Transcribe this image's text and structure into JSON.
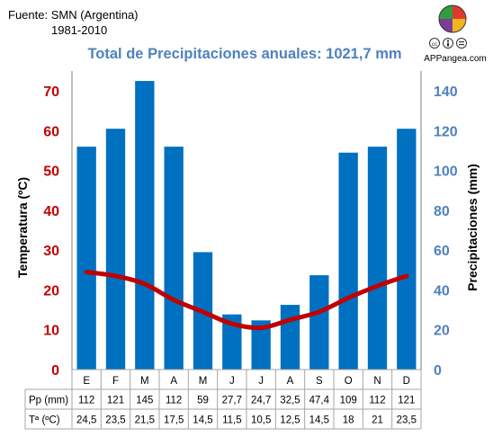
{
  "source": {
    "line1": "Fuente: SMN (Argentina)",
    "line2": "1981-2010"
  },
  "logo": {
    "text": "APPangea.com",
    "license_icons": [
      "cc-icon",
      "by-icon",
      "equal-icon"
    ]
  },
  "colors": {
    "bar": "#0070c0",
    "line": "#c00000",
    "right_axis": "#4f81bd",
    "left_axis": "#c00000"
  },
  "chart_data": {
    "type": "bar",
    "title": "Total de Precipitaciones anuales: 1021,7 mm",
    "categories": [
      "E",
      "F",
      "M",
      "A",
      "M",
      "J",
      "J",
      "A",
      "S",
      "O",
      "N",
      "D"
    ],
    "series": [
      {
        "name": "Pp (mm)",
        "type": "bar",
        "axis": "right",
        "values": [
          112,
          121,
          145,
          112,
          59,
          27.7,
          24.7,
          32.5,
          47.4,
          109,
          112,
          121
        ],
        "labels": [
          "112",
          "121",
          "145",
          "112",
          "59",
          "27,7",
          "24,7",
          "32,5",
          "47,4",
          "109",
          "112",
          "121"
        ]
      },
      {
        "name": "Tª (ºC)",
        "type": "line",
        "axis": "left",
        "values": [
          24.5,
          23.5,
          21.5,
          17.5,
          14.5,
          11.5,
          10.5,
          12.5,
          14.5,
          18,
          21,
          23.5
        ],
        "labels": [
          "24,5",
          "23,5",
          "21,5",
          "17,5",
          "14,5",
          "11,5",
          "10,5",
          "12,5",
          "14,5",
          "18",
          "21",
          "23,5"
        ]
      }
    ],
    "y_left": {
      "label": "Temperatura (ºC)",
      "ticks": [
        0,
        10,
        20,
        30,
        40,
        50,
        60,
        70
      ],
      "range": [
        0,
        75
      ]
    },
    "y_right": {
      "label": "Precipitaciones (mm)",
      "ticks": [
        0,
        20,
        40,
        60,
        80,
        100,
        120,
        140
      ],
      "range": [
        0,
        150
      ]
    },
    "table_rows": [
      "Pp (mm)",
      "Tª (ºC)"
    ],
    "grid": false,
    "legend": "data table"
  }
}
